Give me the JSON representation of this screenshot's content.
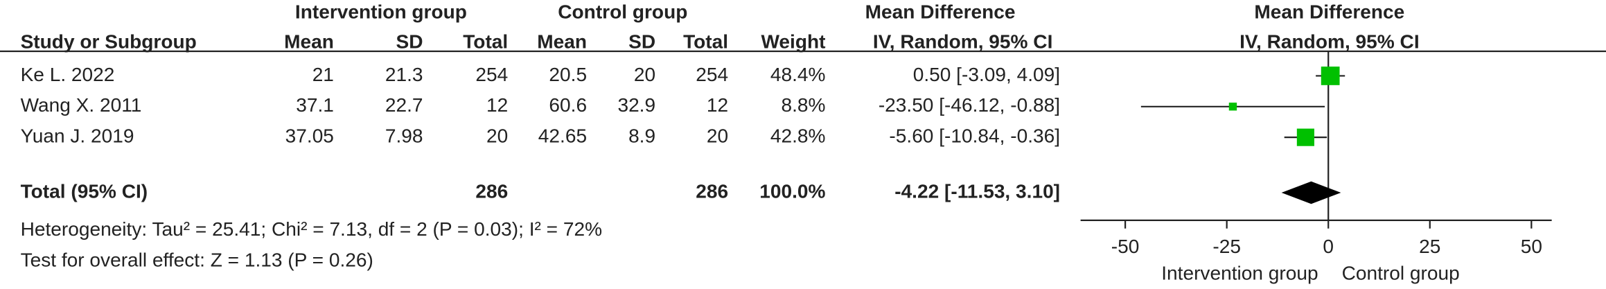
{
  "chart_data": {
    "type": "forest",
    "group_headers": [
      "Intervention group",
      "Control group",
      "Mean Difference",
      "Mean Difference"
    ],
    "columns": [
      "Study or Subgroup",
      "Mean",
      "SD",
      "Total",
      "Mean",
      "SD",
      "Total",
      "Weight",
      "IV, Random, 95% CI",
      "IV, Random, 95% CI"
    ],
    "studies": [
      {
        "name": "Ke L. 2022",
        "int_mean": 21,
        "int_sd": 21.3,
        "int_total": 254,
        "ctl_mean": 20.5,
        "ctl_sd": 20,
        "ctl_total": 254,
        "weight": 48.4,
        "weight_label": "48.4%",
        "md": 0.5,
        "ci_low": -3.09,
        "ci_high": 4.09,
        "ci_label": "0.50 [-3.09, 4.09]"
      },
      {
        "name": "Wang X. 2011",
        "int_mean": 37.1,
        "int_sd": 22.7,
        "int_total": 12,
        "ctl_mean": 60.6,
        "ctl_sd": 32.9,
        "ctl_total": 12,
        "weight": 8.8,
        "weight_label": "8.8%",
        "md": -23.5,
        "ci_low": -46.12,
        "ci_high": -0.88,
        "ci_label": "-23.50 [-46.12, -0.88]"
      },
      {
        "name": "Yuan J. 2019",
        "int_mean": 37.05,
        "int_sd": 7.98,
        "int_total": 20,
        "ctl_mean": 42.65,
        "ctl_sd": 8.9,
        "ctl_total": 20,
        "weight": 42.8,
        "weight_label": "42.8%",
        "md": -5.6,
        "ci_low": -10.84,
        "ci_high": -0.36,
        "ci_label": "-5.60 [-10.84, -0.36]"
      }
    ],
    "total": {
      "name": "Total (95% CI)",
      "int_total": 286,
      "ctl_total": 286,
      "weight": 100,
      "weight_label": "100.0%",
      "md": -4.22,
      "ci_low": -11.53,
      "ci_high": 3.1,
      "ci_label": "-4.22 [-11.53, 3.10]"
    },
    "heterogeneity": "Heterogeneity: Tau² = 25.41; Chi² = 7.13, df = 2 (P = 0.03); I² = 72%",
    "overall_effect": "Test for overall effect: Z = 1.13 (P = 0.26)",
    "xlim": [
      -61,
      55
    ],
    "xticks": [
      -50,
      -25,
      0,
      25,
      50
    ],
    "x_labels": [
      "Intervention group",
      "Control group"
    ],
    "color": "#00c000"
  }
}
